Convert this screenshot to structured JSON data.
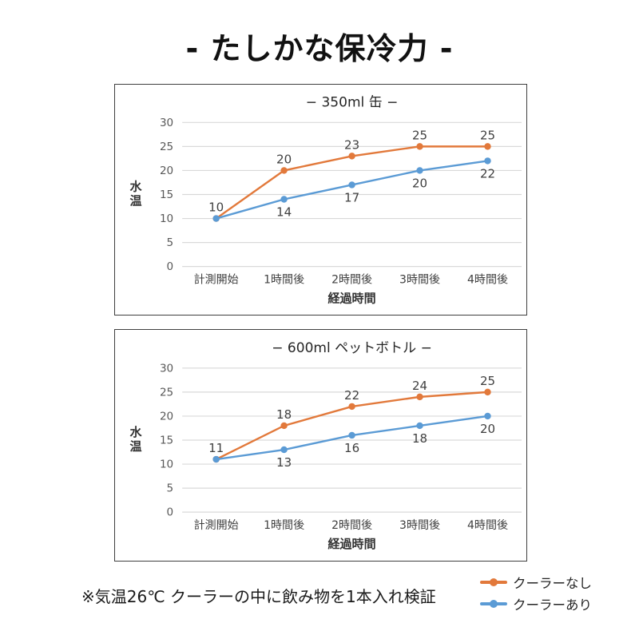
{
  "page": {
    "title": "- たしかな保冷力 -",
    "footnote": "※気温26℃ クーラーの中に飲み物を1本入れ検証"
  },
  "colors": {
    "chart_border": "#3F3F3F",
    "chart_title": "#262626",
    "gridline": "#D9D9D9",
    "tick_label": "#595959",
    "category_label": "#404040",
    "axis_title": "#333333",
    "data_label": "#404040"
  },
  "chart_data": [
    {
      "type": "line",
      "title": "− 350ml 缶 −",
      "categories": [
        "計測開始",
        "1時間後",
        "2時間後",
        "3時間後",
        "4時間後"
      ],
      "series": [
        {
          "name": "クーラーなし",
          "color": "#E2793B",
          "values": [
            10,
            20,
            23,
            25,
            25
          ],
          "label_position": "above"
        },
        {
          "name": "クーラーあり",
          "color": "#5B9BD5",
          "values": [
            10,
            14,
            17,
            20,
            22
          ],
          "label_position": "below"
        }
      ],
      "xlabel": "経過時間",
      "ylabel": "水温",
      "ylim": [
        0,
        30
      ],
      "ytick_step": 5,
      "grid": true,
      "legend_position": "none"
    },
    {
      "type": "line",
      "title": "− 600ml ペットボトル −",
      "categories": [
        "計測開始",
        "1時間後",
        "2時間後",
        "3時間後",
        "4時間後"
      ],
      "series": [
        {
          "name": "クーラーなし",
          "color": "#E2793B",
          "values": [
            11,
            18,
            22,
            24,
            25
          ],
          "label_position": "above"
        },
        {
          "name": "クーラーあり",
          "color": "#5B9BD5",
          "values": [
            11,
            13,
            16,
            18,
            20
          ],
          "label_position": "below"
        }
      ],
      "xlabel": "経過時間",
      "ylabel": "水温",
      "ylim": [
        0,
        30
      ],
      "ytick_step": 5,
      "grid": true,
      "legend_position": "none"
    }
  ]
}
